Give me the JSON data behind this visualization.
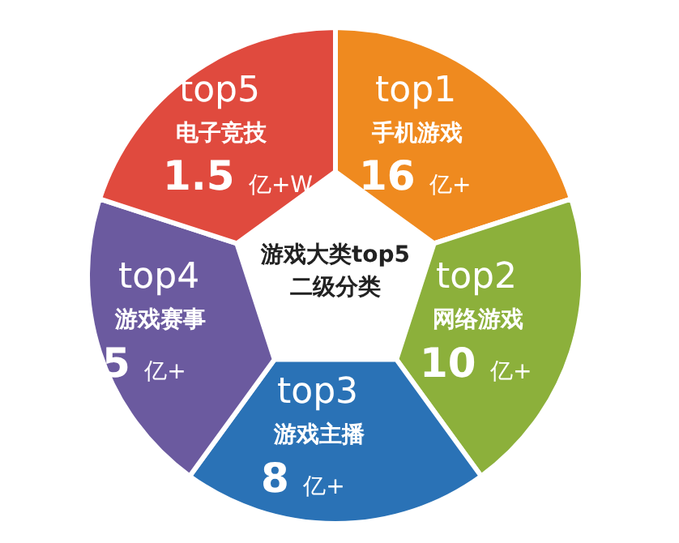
{
  "chart_data": {
    "type": "other",
    "title": "游戏大类top5\n二级分类",
    "categories": [
      "手机游戏",
      "网络游戏",
      "游戏主播",
      "游戏赛事",
      "电子竞技"
    ],
    "values": [
      16,
      10,
      8,
      5,
      1.5
    ],
    "value_labels": [
      "16 亿+",
      "10 亿+",
      "8 亿+",
      "5 亿+",
      "1.5 亿+W"
    ],
    "annotations": [
      "top1",
      "top2",
      "top3",
      "top4",
      "top5"
    ],
    "colors": [
      "#ef8a1f",
      "#8cb03b",
      "#2a72b6",
      "#6b5a9f",
      "#e04a3e"
    ]
  }
}
